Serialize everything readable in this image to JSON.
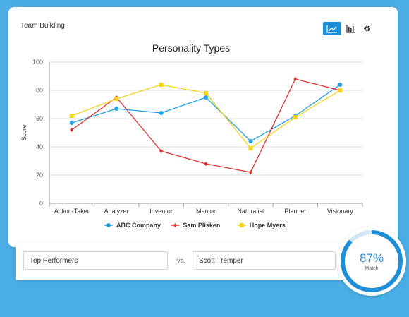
{
  "card": {
    "title": "Team Building"
  },
  "toolbar": {
    "line_chart_icon": "line-chart-icon",
    "bar_chart_icon": "bar-chart-icon",
    "settings_icon": "gear-icon"
  },
  "colors": {
    "abc": "#1ea0de",
    "sam": "#df3230",
    "hope": "#f6d21a",
    "accent": "#1e8fd6"
  },
  "chart_data": {
    "type": "line",
    "title": "Personality Types",
    "xlabel": "",
    "ylabel": "Score",
    "ylim": [
      0,
      100
    ],
    "yticks": [
      0,
      20,
      40,
      60,
      80,
      100
    ],
    "grid": true,
    "legend": "bottom",
    "categories": [
      "Action-Taker",
      "Analyzer",
      "Inventor",
      "Mentor",
      "Naturalist",
      "Planner",
      "Visionary"
    ],
    "series": [
      {
        "name": "ABC Company",
        "marker": "circle",
        "values": [
          57,
          67,
          64,
          75,
          44,
          62,
          84
        ]
      },
      {
        "name": "Sam Plisken",
        "marker": "diamond",
        "values": [
          52,
          75,
          37,
          28,
          22,
          88,
          80
        ]
      },
      {
        "name": "Hope Myers",
        "marker": "square",
        "values": [
          62,
          74,
          84,
          78,
          39,
          61,
          80
        ]
      }
    ]
  },
  "comparison": {
    "left_value": "Top Performers",
    "vs_label": "vs.",
    "right_value": "Scott Tremper"
  },
  "match": {
    "percent": "87%",
    "value": 87,
    "label": "Match"
  }
}
